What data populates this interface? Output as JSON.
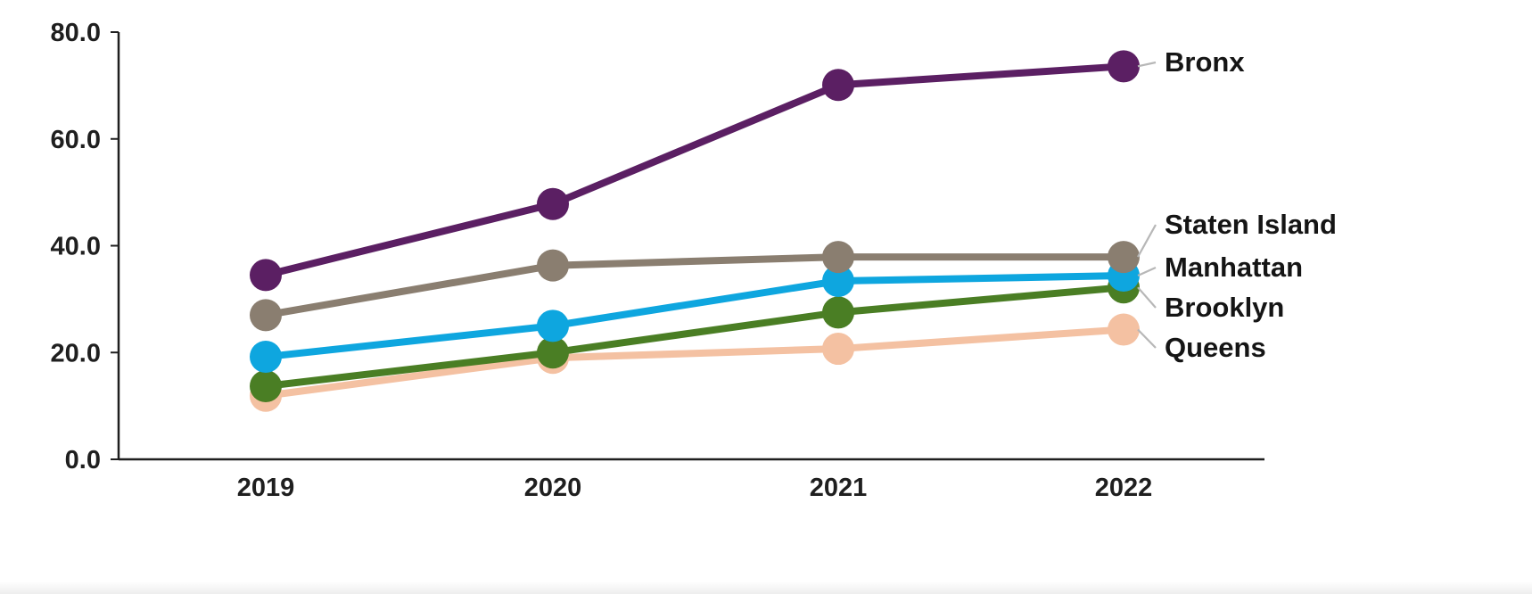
{
  "chart_data": {
    "type": "line",
    "title": "",
    "xlabel": "",
    "ylabel": "",
    "categories": [
      "2019",
      "2020",
      "2021",
      "2022"
    ],
    "ylim": [
      0,
      80
    ],
    "yticks": [
      0,
      20,
      40,
      60,
      80
    ],
    "ytick_labels": [
      "0.0",
      "20.0",
      "40.0",
      "60.0",
      "80.0"
    ],
    "grid": false,
    "legend": "direct labels at right end of lines",
    "series": [
      {
        "name": "Bronx",
        "values": [
          34.5,
          47.8,
          70.1,
          73.6
        ],
        "color": "#5b1f63"
      },
      {
        "name": "Staten Island",
        "values": [
          27.0,
          36.3,
          37.9,
          37.9
        ],
        "color": "#8a7e70"
      },
      {
        "name": "Manhattan",
        "values": [
          19.2,
          25.0,
          33.4,
          34.4
        ],
        "color": "#0ea6df"
      },
      {
        "name": "Brooklyn",
        "values": [
          13.7,
          20.0,
          27.5,
          32.2
        ],
        "color": "#4a7e24"
      },
      {
        "name": "Queens",
        "values": [
          11.9,
          19.0,
          20.7,
          24.3
        ],
        "color": "#f4c1a2"
      }
    ]
  }
}
